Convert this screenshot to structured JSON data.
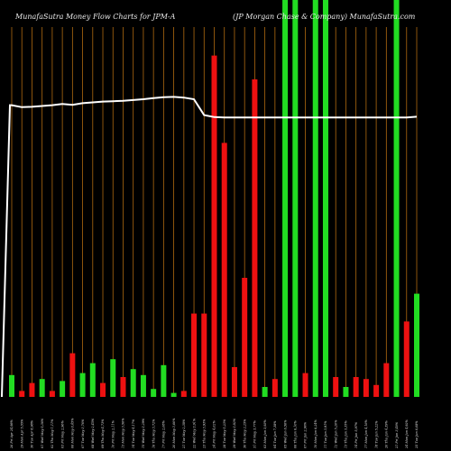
{
  "header": {
    "left": "MunafaSutra  Money Flow  Charts for JPM-A",
    "right": "(JP Morgan  Chase  &  Company)  MunafaSutra.com"
  },
  "chart_data": {
    "type": "bar",
    "title": "MunafaSutra  Money Flow  Charts for JPM-A",
    "subtitle": "(JP Morgan  Chase  &  Company)  MunafaSutra.com",
    "grid": "vertical",
    "colors": {
      "up": "#22dd22",
      "down": "#ee1111",
      "grid": "#b06a10",
      "line": "#ffffff"
    },
    "categories": [
      "2024-04-26",
      "2024-04-29",
      "2024-04-30",
      "2024-05-01",
      "2024-05-02",
      "2024-05-03",
      "2024-05-06",
      "2024-05-07",
      "2024-05-08",
      "2024-05-09",
      "2024-05-10",
      "2024-05-13",
      "2024-05-14",
      "2024-05-15",
      "2024-05-16",
      "2024-05-17",
      "2024-05-20",
      "2024-05-21",
      "2024-05-22",
      "2024-05-23",
      "2024-05-24",
      "2024-05-28",
      "2024-05-29",
      "2024-05-30",
      "2024-05-31",
      "2024-06-03",
      "2024-06-04",
      "2024-06-05",
      "2024-06-06",
      "2024-06-07",
      "2024-06-10",
      "2024-06-11",
      "2024-06-12",
      "2024-06-13",
      "2024-06-14",
      "2024-06-17",
      "2024-06-18",
      "2024-06-20",
      "2024-06-21",
      "2024-06-24",
      "2024-06-25"
    ],
    "tick_labels": [
      "26 Fri Apr 24,98%",
      "29 Mon Apr 5,55%",
      "30 Tue Apr 8,98%",
      "01 Wed May 5,36%",
      "02 Thu May 1,11%",
      "03 Fri May 2,96%",
      "06 Mon May 0,45%",
      "07 Tue May 3,76%",
      "08 Wed May 2,45%",
      "09 Thu May 4,73%",
      "10 Fri May 2,11%",
      "13 Mon May 3,56%",
      "14 Tue May 4,17%",
      "15 Wed May 3,29%",
      "16 Thu May 3,72%",
      "17 Fri May 2,08%",
      "20 Mon May 3,60%",
      "21 Tue May 2,38%",
      "22 Wed May 3,91%",
      "23 Thu May 3,93%",
      "24 Fri May 4,02%",
      "28 Tue May 5,23%",
      "29 Wed May 3,82%",
      "30 Thu May 2,25%",
      "31 Fri May 3,77%",
      "03 Mon Jun 3,93%",
      "04 Tue Jun 7,38%",
      "05 Wed Jun 6,56%",
      "06 Thu Jun 6,10%",
      "07 Fri Jun 2,90%",
      "10 Mon Jun 6,24%",
      "11 Tue Jun 3,91%",
      "12 Wed Jun 5,20%",
      "13 Thu Jun 3,35%",
      "14 Fri Jun 5,97%",
      "17 Mon Jun 4,16%",
      "18 Tue Jun 5,22%",
      "20 Thu Jun 4,39%",
      "21 Fri Jun 3,40%",
      "24 Mon Jun 4,92%",
      "25 Tue Jun 6,08%"
    ],
    "bar_values": [
      5.5,
      1.5,
      3.5,
      4.5,
      1.5,
      4.0,
      11.0,
      6.0,
      8.5,
      3.5,
      9.5,
      5.0,
      7.0,
      5.5,
      2.0,
      8.0,
      1.0,
      1.5,
      21.0,
      21.0,
      86.0,
      64.0,
      7.5,
      30.0,
      80.0,
      2.5,
      4.5,
      100.0,
      100.0,
      6.0,
      100.0,
      100.0,
      5.0,
      2.5,
      5.0,
      4.5,
      3.0,
      8.5,
      100.0,
      19.0,
      26.0
    ],
    "bar_colors": [
      "up",
      "down",
      "down",
      "up",
      "down",
      "up",
      "down",
      "up",
      "up",
      "down",
      "up",
      "down",
      "up",
      "up",
      "up",
      "up",
      "up",
      "down",
      "down",
      "down",
      "down",
      "down",
      "down",
      "down",
      "down",
      "up",
      "down",
      "up",
      "up",
      "down",
      "up",
      "up",
      "down",
      "up",
      "down",
      "down",
      "down",
      "down",
      "up",
      "down",
      "up"
    ],
    "line_values": [
      73.5,
      73.0,
      73.1,
      73.3,
      73.5,
      73.8,
      73.6,
      74.0,
      74.2,
      74.4,
      74.5,
      74.6,
      74.8,
      75.0,
      75.3,
      75.5,
      75.6,
      75.4,
      75.0,
      71.0,
      70.5,
      70.4,
      70.4,
      70.4,
      70.4,
      70.4,
      70.4,
      70.4,
      70.4,
      70.4,
      70.4,
      70.4,
      70.4,
      70.4,
      70.4,
      70.4,
      70.4,
      70.4,
      70.4,
      70.4,
      70.6
    ],
    "ylim": [
      0,
      100
    ]
  }
}
